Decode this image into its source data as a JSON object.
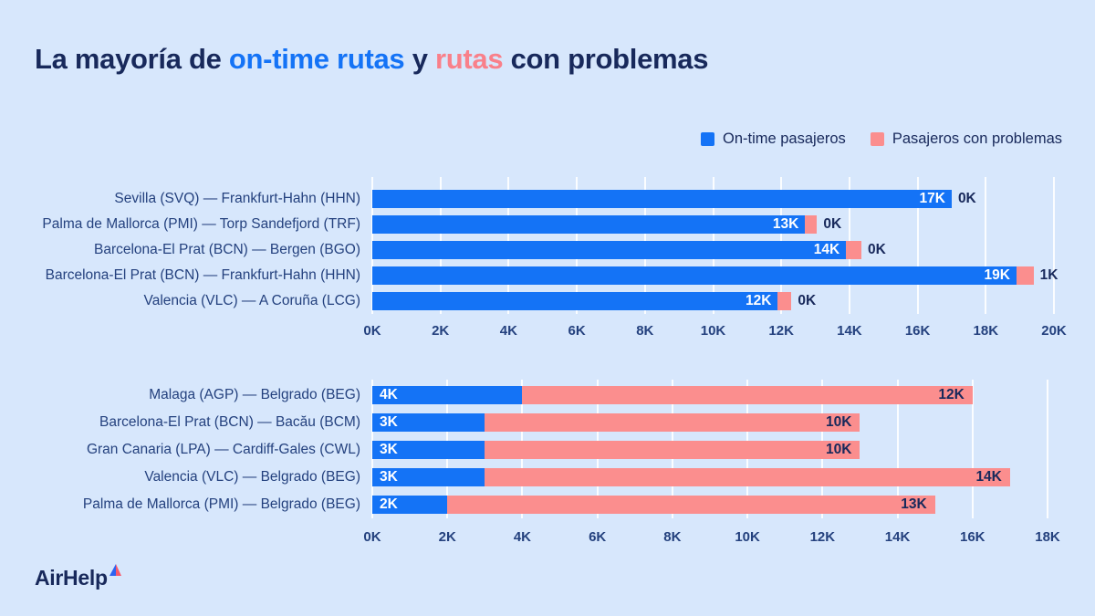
{
  "colors": {
    "background": "#D7E7FC",
    "blue": "#1473F6",
    "pink": "#FB8E8E",
    "navy_dark": "#18295B",
    "navy_mid": "#24417E",
    "title_pink": "#F9808A"
  },
  "title": {
    "segments": [
      {
        "text": "La mayoría de ",
        "color": "navy"
      },
      {
        "text": "on-time rutas",
        "color": "blue"
      },
      {
        "text": " y ",
        "color": "navy"
      },
      {
        "text": "rutas",
        "color": "pink"
      },
      {
        "text": " con problemas",
        "color": "navy"
      }
    ]
  },
  "legend": {
    "items": [
      {
        "label": "On-time pasajeros",
        "color": "#1473F6"
      },
      {
        "label": "Pasajeros con problemas",
        "color": "#FB8E8E"
      }
    ]
  },
  "logo": {
    "text": "AirHelp"
  },
  "chart_data": [
    {
      "type": "bar",
      "orientation": "horizontal",
      "stacked": true,
      "grid": true,
      "legend_position": "top-right",
      "series_names": [
        "On-time pasajeros",
        "Pasajeros con problemas"
      ],
      "axis": {
        "min": 0,
        "max": 20,
        "step": 2,
        "unit": "K",
        "tick_labels": [
          "0K",
          "2K",
          "4K",
          "6K",
          "8K",
          "10K",
          "12K",
          "14K",
          "16K",
          "18K",
          "20K"
        ]
      },
      "problems_label_position": "outside",
      "rows": [
        {
          "category": "Sevilla (SVQ) — Frankfurt-Hahn (HHN)",
          "ontime_k": 17,
          "problems_k": 0,
          "ontime_label": "17K",
          "problems_label": "0K",
          "ontime_est_k": 17.0,
          "problems_est_k": 0.0
        },
        {
          "category": "Palma de Mallorca (PMI) — Torp Sandefjord (TRF)",
          "ontime_k": 13,
          "problems_k": 0,
          "ontime_label": "13K",
          "problems_label": "0K",
          "ontime_est_k": 12.7,
          "problems_est_k": 0.35
        },
        {
          "category": "Barcelona-El Prat (BCN) — Bergen (BGO)",
          "ontime_k": 14,
          "problems_k": 0,
          "ontime_label": "14K",
          "problems_label": "0K",
          "ontime_est_k": 13.9,
          "problems_est_k": 0.45
        },
        {
          "category": "Barcelona-El Prat (BCN) — Frankfurt-Hahn (HHN)",
          "ontime_k": 19,
          "problems_k": 1,
          "ontime_label": "19K",
          "problems_label": "1K",
          "ontime_est_k": 18.9,
          "problems_est_k": 0.5
        },
        {
          "category": "Valencia (VLC) — A Coruña (LCG)",
          "ontime_k": 12,
          "problems_k": 0,
          "ontime_label": "12K",
          "problems_label": "0K",
          "ontime_est_k": 11.9,
          "problems_est_k": 0.4
        }
      ]
    },
    {
      "type": "bar",
      "orientation": "horizontal",
      "stacked": true,
      "grid": true,
      "legend_position": "top-right",
      "series_names": [
        "On-time pasajeros",
        "Pasajeros con problemas"
      ],
      "axis": {
        "min": 0,
        "max": 18,
        "step": 2,
        "unit": "K",
        "tick_labels": [
          "0K",
          "2K",
          "4K",
          "6K",
          "8K",
          "10K",
          "12K",
          "14K",
          "16K",
          "18K"
        ]
      },
      "problems_label_position": "inside",
      "rows": [
        {
          "category": "Malaga (AGP) — Belgrado (BEG)",
          "ontime_k": 4,
          "problems_k": 12,
          "ontime_label": "4K",
          "problems_label": "12K",
          "ontime_est_k": 4.0,
          "problems_est_k": 12.0
        },
        {
          "category": "Barcelona-El Prat (BCN) — Bacău (BCM)",
          "ontime_k": 3,
          "problems_k": 10,
          "ontime_label": "3K",
          "problems_label": "10K",
          "ontime_est_k": 3.0,
          "problems_est_k": 10.0
        },
        {
          "category": "Gran Canaria (LPA) — Cardiff-Gales (CWL)",
          "ontime_k": 3,
          "problems_k": 10,
          "ontime_label": "3K",
          "problems_label": "10K",
          "ontime_est_k": 3.0,
          "problems_est_k": 10.0
        },
        {
          "category": "Valencia (VLC) — Belgrado (BEG)",
          "ontime_k": 3,
          "problems_k": 14,
          "ontime_label": "3K",
          "problems_label": "14K",
          "ontime_est_k": 3.0,
          "problems_est_k": 14.0
        },
        {
          "category": "Palma de Mallorca (PMI) — Belgrado (BEG)",
          "ontime_k": 2,
          "problems_k": 13,
          "ontime_label": "2K",
          "problems_label": "13K",
          "ontime_est_k": 2.0,
          "problems_est_k": 13.0
        }
      ]
    }
  ]
}
